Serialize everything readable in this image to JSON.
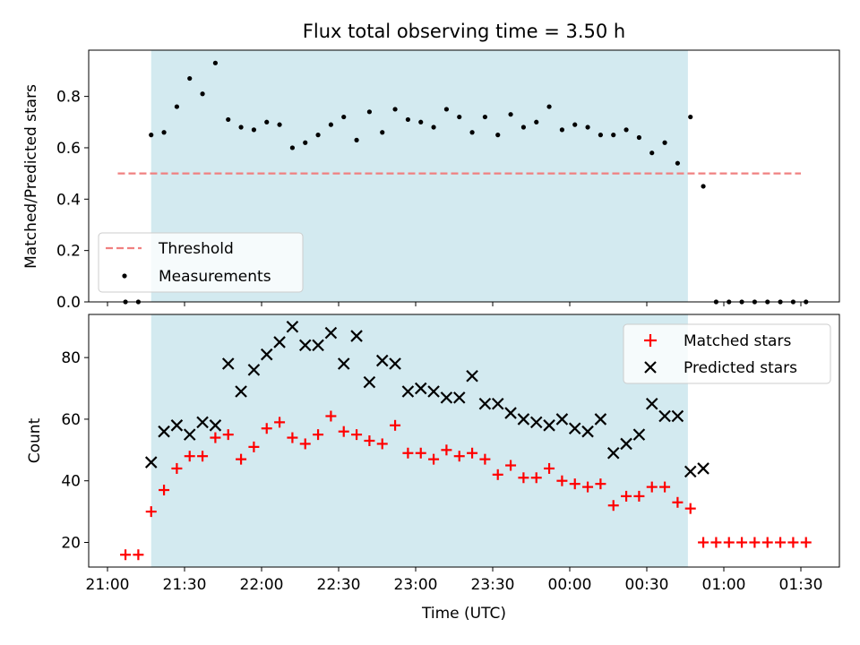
{
  "chart_data": [
    {
      "type": "scatter",
      "title": "Flux total observing time = 3.50 h",
      "xlabel": "",
      "ylabel": "Matched/Predicted stars",
      "ylim": [
        0,
        0.98
      ],
      "yticks": [
        "0.0",
        "0.2",
        "0.4",
        "0.6",
        "0.8"
      ],
      "shaded_span_x": [
        "21:17",
        "00:46"
      ],
      "colors": {
        "shade": "#d3eaf0",
        "threshold": "#f08080",
        "points": "#000000"
      },
      "legend": {
        "position": "lower-left",
        "entries": [
          "Threshold",
          "Measurements"
        ]
      },
      "threshold": {
        "name": "Threshold",
        "value": 0.5,
        "x_range": [
          "21:04",
          "01:30"
        ],
        "style": "dashed"
      },
      "series": [
        {
          "name": "Measurements",
          "x": [
            "21:07",
            "21:12",
            "21:17",
            "21:22",
            "21:27",
            "21:32",
            "21:37",
            "21:42",
            "21:47",
            "21:52",
            "21:57",
            "22:02",
            "22:07",
            "22:12",
            "22:17",
            "22:22",
            "22:27",
            "22:32",
            "22:37",
            "22:42",
            "22:47",
            "22:52",
            "22:57",
            "23:02",
            "23:07",
            "23:12",
            "23:17",
            "23:22",
            "23:27",
            "23:32",
            "23:37",
            "23:42",
            "23:47",
            "23:52",
            "23:57",
            "00:02",
            "00:07",
            "00:12",
            "00:17",
            "00:22",
            "00:27",
            "00:32",
            "00:37",
            "00:42",
            "00:47",
            "00:52",
            "00:57",
            "01:02",
            "01:07",
            "01:12",
            "01:17",
            "01:22",
            "01:27",
            "01:32"
          ],
          "y": [
            0.0,
            0.0,
            0.65,
            0.66,
            0.76,
            0.87,
            0.81,
            0.93,
            0.71,
            0.68,
            0.67,
            0.7,
            0.69,
            0.6,
            0.62,
            0.65,
            0.69,
            0.72,
            0.63,
            0.74,
            0.66,
            0.75,
            0.71,
            0.7,
            0.68,
            0.75,
            0.72,
            0.66,
            0.72,
            0.65,
            0.73,
            0.68,
            0.7,
            0.76,
            0.67,
            0.69,
            0.68,
            0.65,
            0.65,
            0.67,
            0.64,
            0.58,
            0.62,
            0.54,
            0.72,
            0.45,
            0.0,
            0.0,
            0.0,
            0.0,
            0.0,
            0.0,
            0.0,
            0.0
          ]
        }
      ]
    },
    {
      "type": "scatter",
      "title": "",
      "xlabel": "Time (UTC)",
      "ylabel": "Count",
      "ylim": [
        12,
        94
      ],
      "yticks": [
        "20",
        "40",
        "60",
        "80"
      ],
      "xticks": [
        "21:00",
        "21:30",
        "22:00",
        "22:30",
        "23:00",
        "23:30",
        "00:00",
        "00:30",
        "01:00",
        "01:30"
      ],
      "shaded_span_x": [
        "21:17",
        "00:46"
      ],
      "colors": {
        "matched": "#ff0000",
        "predicted": "#000000",
        "shade": "#d3eaf0"
      },
      "legend": {
        "position": "top-right",
        "entries": [
          "Matched stars",
          "Predicted stars"
        ]
      },
      "series": [
        {
          "name": "Matched stars",
          "x": [
            "21:07",
            "21:12",
            "21:17",
            "21:22",
            "21:27",
            "21:32",
            "21:37",
            "21:42",
            "21:47",
            "21:52",
            "21:57",
            "22:02",
            "22:07",
            "22:12",
            "22:17",
            "22:22",
            "22:27",
            "22:32",
            "22:37",
            "22:42",
            "22:47",
            "22:52",
            "22:57",
            "23:02",
            "23:07",
            "23:12",
            "23:17",
            "23:22",
            "23:27",
            "23:32",
            "23:37",
            "23:42",
            "23:47",
            "23:52",
            "23:57",
            "00:02",
            "00:07",
            "00:12",
            "00:17",
            "00:22",
            "00:27",
            "00:32",
            "00:37",
            "00:42",
            "00:47",
            "00:52",
            "00:57",
            "01:02",
            "01:07",
            "01:12",
            "01:17",
            "01:22",
            "01:27",
            "01:32"
          ],
          "y": [
            16,
            16,
            30,
            37,
            44,
            48,
            48,
            54,
            55,
            47,
            51,
            57,
            59,
            54,
            52,
            55,
            61,
            56,
            55,
            53,
            52,
            58,
            49,
            49,
            47,
            50,
            48,
            49,
            47,
            42,
            45,
            41,
            41,
            44,
            40,
            39,
            38,
            39,
            32,
            35,
            35,
            38,
            38,
            33,
            31,
            20,
            20,
            20,
            20,
            20,
            20,
            20,
            20,
            20
          ]
        },
        {
          "name": "Predicted stars",
          "x": [
            "21:17",
            "21:22",
            "21:27",
            "21:32",
            "21:37",
            "21:42",
            "21:47",
            "21:52",
            "21:57",
            "22:02",
            "22:07",
            "22:12",
            "22:17",
            "22:22",
            "22:27",
            "22:32",
            "22:37",
            "22:42",
            "22:47",
            "22:52",
            "22:57",
            "23:02",
            "23:07",
            "23:12",
            "23:17",
            "23:22",
            "23:27",
            "23:32",
            "23:37",
            "23:42",
            "23:47",
            "23:52",
            "23:57",
            "00:02",
            "00:07",
            "00:12",
            "00:17",
            "00:22",
            "00:27",
            "00:32",
            "00:37",
            "00:42",
            "00:47",
            "00:52"
          ],
          "y": [
            46,
            56,
            58,
            55,
            59,
            58,
            78,
            69,
            76,
            81,
            85,
            90,
            84,
            84,
            88,
            78,
            87,
            72,
            79,
            78,
            69,
            70,
            69,
            67,
            67,
            74,
            65,
            65,
            62,
            60,
            59,
            58,
            60,
            57,
            56,
            60,
            49,
            52,
            55,
            65,
            61,
            61,
            43,
            44
          ]
        }
      ]
    }
  ]
}
